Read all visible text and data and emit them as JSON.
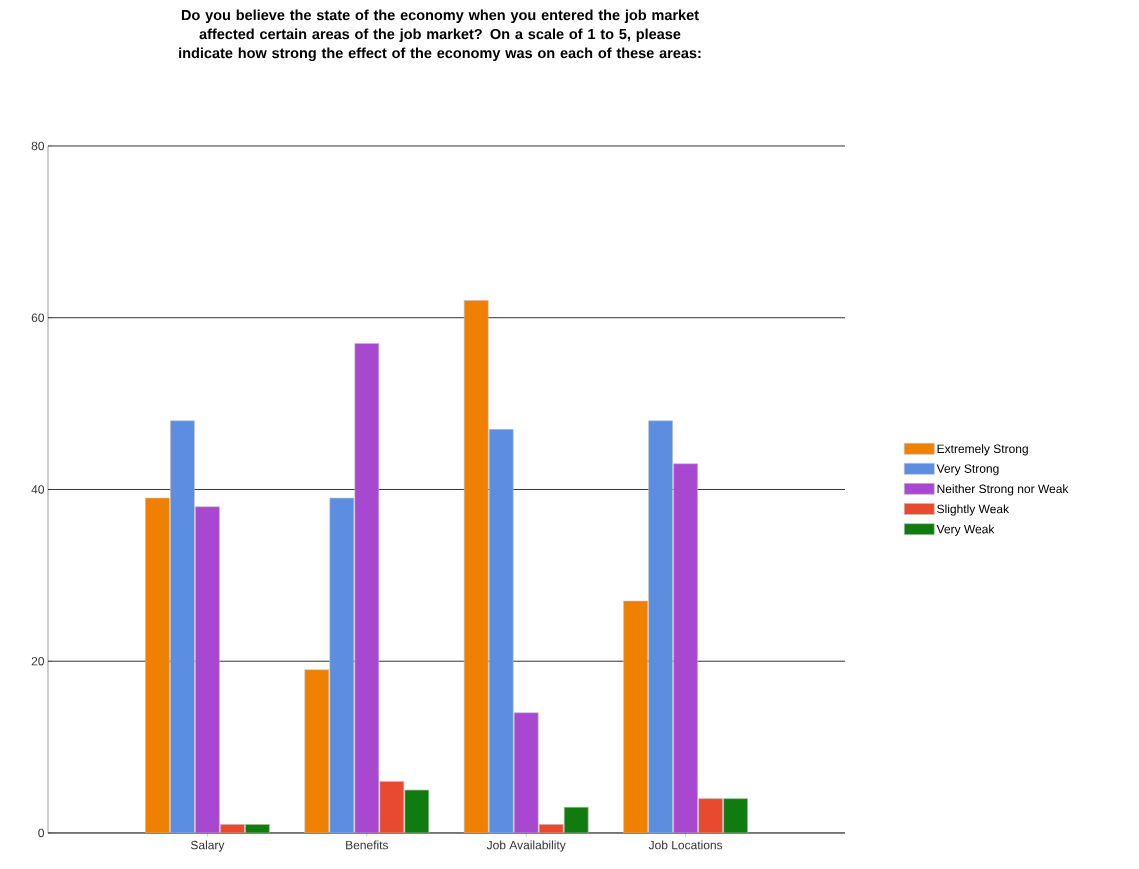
{
  "chart_data": {
    "type": "bar",
    "title": "Do you believe the state of the economy when you entered the job market affected certain areas of the job market? On a scale of 1 to 5, please indicate how strong the effect of the economy was on each of these areas:",
    "categories": [
      "Salary",
      "Benefits",
      "Job Availability",
      "Job Locations"
    ],
    "series": [
      {
        "name": "Extremely Strong",
        "color": "#f08000",
        "values": [
          39,
          19,
          62,
          27
        ]
      },
      {
        "name": "Very Strong",
        "color": "#5b8ee0",
        "values": [
          48,
          39,
          47,
          48
        ]
      },
      {
        "name": "Neither Strong nor Weak",
        "color": "#a848d0",
        "values": [
          38,
          57,
          14,
          43
        ]
      },
      {
        "name": "Slightly Weak",
        "color": "#e84a30",
        "values": [
          1,
          6,
          1,
          4
        ]
      },
      {
        "name": "Very Weak",
        "color": "#107c10",
        "values": [
          1,
          5,
          3,
          4
        ]
      }
    ],
    "ylim": [
      0,
      80
    ],
    "yticks": [
      0,
      20,
      40,
      60,
      80
    ],
    "grid": "y",
    "legend": "right"
  }
}
